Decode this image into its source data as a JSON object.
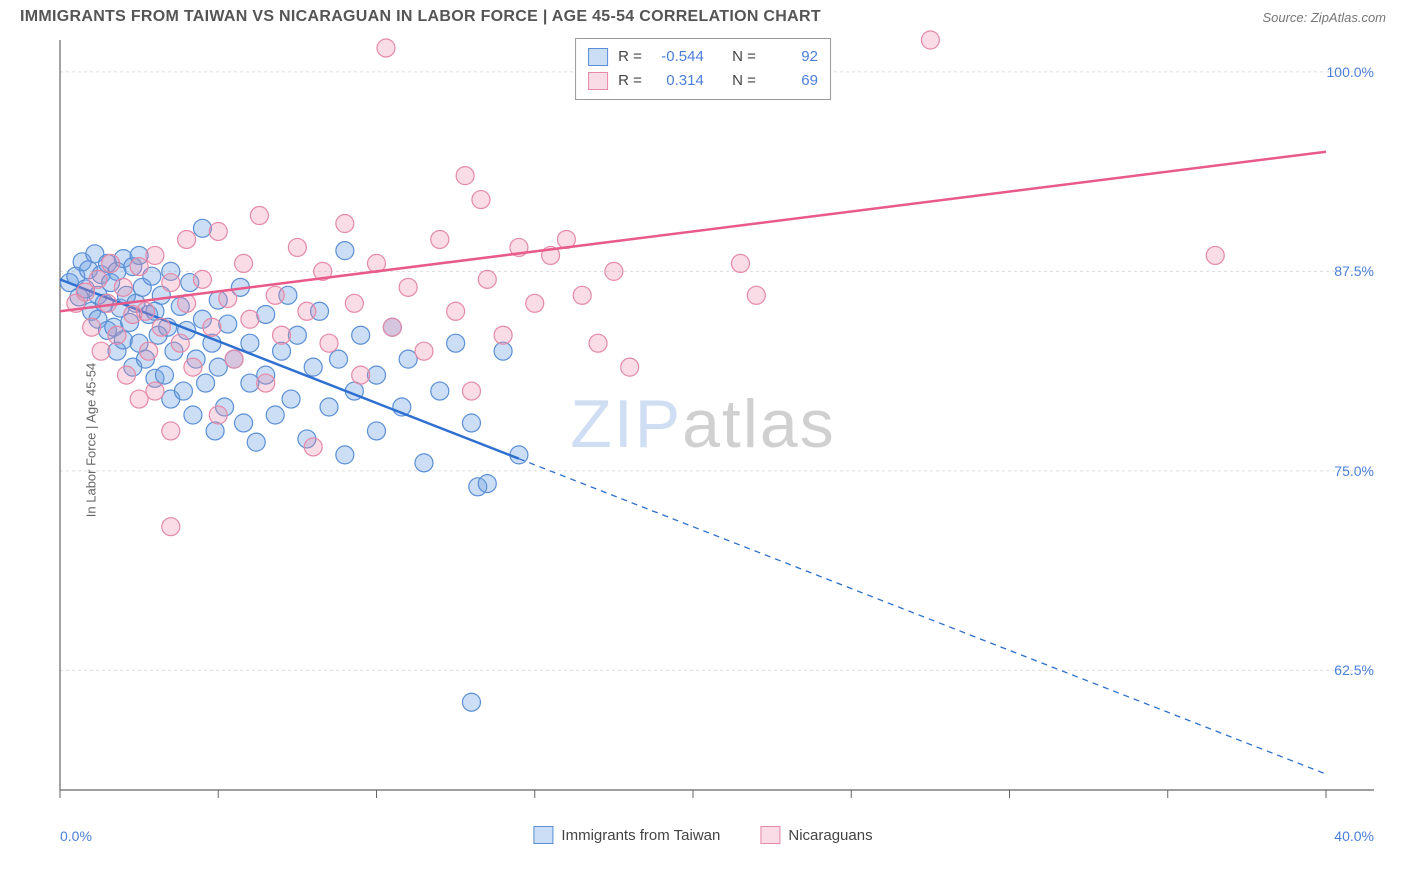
{
  "header": {
    "title": "IMMIGRANTS FROM TAIWAN VS NICARAGUAN IN LABOR FORCE | AGE 45-54 CORRELATION CHART",
    "source": "Source: ZipAtlas.com"
  },
  "watermark": {
    "zip": "ZIP",
    "atlas": "atlas"
  },
  "chart": {
    "type": "scatter",
    "background_color": "#ffffff",
    "axis_color": "#666666",
    "grid_color": "#dddddd",
    "tick_label_color": "#4a7fd8",
    "marker_radius": 9,
    "marker_stroke_width": 1.2,
    "line_width": 2.5,
    "x": {
      "min": 0,
      "max": 40,
      "label_min": "0.0%",
      "label_max": "40.0%",
      "ticks": [
        0,
        5,
        10,
        15,
        20,
        25,
        30,
        35,
        40
      ]
    },
    "y": {
      "min": 55,
      "max": 102,
      "label": "In Labor Force | Age 45-54",
      "grid_values": [
        62.5,
        75.0,
        87.5,
        100.0
      ],
      "grid_labels": [
        "62.5%",
        "75.0%",
        "87.5%",
        "100.0%"
      ]
    },
    "series": [
      {
        "id": "taiwan",
        "name": "Immigrants from Taiwan",
        "fill_color": "rgba(109,160,226,0.35)",
        "stroke_color": "#5a8fd6",
        "line_color": "#2e6fd0",
        "R": "-0.544",
        "N": "92",
        "trend": {
          "y_at_xmin": 87.0,
          "y_at_xmax": 56.0,
          "solid_until_x": 14.5
        },
        "points": [
          [
            0.3,
            86.8
          ],
          [
            0.5,
            87.2
          ],
          [
            0.6,
            85.9
          ],
          [
            0.7,
            88.1
          ],
          [
            0.8,
            86.4
          ],
          [
            0.9,
            87.6
          ],
          [
            1.0,
            85.0
          ],
          [
            1.1,
            88.6
          ],
          [
            1.2,
            86.0
          ],
          [
            1.2,
            84.5
          ],
          [
            1.3,
            87.3
          ],
          [
            1.4,
            85.5
          ],
          [
            1.5,
            88.0
          ],
          [
            1.5,
            83.8
          ],
          [
            1.6,
            86.8
          ],
          [
            1.7,
            84.0
          ],
          [
            1.8,
            87.5
          ],
          [
            1.8,
            82.5
          ],
          [
            1.9,
            85.2
          ],
          [
            2.0,
            88.3
          ],
          [
            2.0,
            83.2
          ],
          [
            2.1,
            86.0
          ],
          [
            2.2,
            84.3
          ],
          [
            2.3,
            87.8
          ],
          [
            2.3,
            81.5
          ],
          [
            2.4,
            85.5
          ],
          [
            2.5,
            83.0
          ],
          [
            2.5,
            88.5
          ],
          [
            2.6,
            86.5
          ],
          [
            2.7,
            82.0
          ],
          [
            2.8,
            84.8
          ],
          [
            2.9,
            87.2
          ],
          [
            3.0,
            80.8
          ],
          [
            3.0,
            85.0
          ],
          [
            3.1,
            83.5
          ],
          [
            3.2,
            86.0
          ],
          [
            3.3,
            81.0
          ],
          [
            3.4,
            84.0
          ],
          [
            3.5,
            87.5
          ],
          [
            3.5,
            79.5
          ],
          [
            3.6,
            82.5
          ],
          [
            3.8,
            85.3
          ],
          [
            3.9,
            80.0
          ],
          [
            4.0,
            83.8
          ],
          [
            4.1,
            86.8
          ],
          [
            4.2,
            78.5
          ],
          [
            4.3,
            82.0
          ],
          [
            4.5,
            84.5
          ],
          [
            4.5,
            90.2
          ],
          [
            4.6,
            80.5
          ],
          [
            4.8,
            83.0
          ],
          [
            4.9,
            77.5
          ],
          [
            5.0,
            85.7
          ],
          [
            5.0,
            81.5
          ],
          [
            5.2,
            79.0
          ],
          [
            5.3,
            84.2
          ],
          [
            5.5,
            82.0
          ],
          [
            5.7,
            86.5
          ],
          [
            5.8,
            78.0
          ],
          [
            6.0,
            83.0
          ],
          [
            6.0,
            80.5
          ],
          [
            6.2,
            76.8
          ],
          [
            6.5,
            84.8
          ],
          [
            6.5,
            81.0
          ],
          [
            6.8,
            78.5
          ],
          [
            7.0,
            82.5
          ],
          [
            7.2,
            86.0
          ],
          [
            7.3,
            79.5
          ],
          [
            7.5,
            83.5
          ],
          [
            7.8,
            77.0
          ],
          [
            8.0,
            81.5
          ],
          [
            8.2,
            85.0
          ],
          [
            8.5,
            79.0
          ],
          [
            8.8,
            82.0
          ],
          [
            9.0,
            88.8
          ],
          [
            9.0,
            76.0
          ],
          [
            9.3,
            80.0
          ],
          [
            9.5,
            83.5
          ],
          [
            10.0,
            81.0
          ],
          [
            10.0,
            77.5
          ],
          [
            10.5,
            84.0
          ],
          [
            10.8,
            79.0
          ],
          [
            11.0,
            82.0
          ],
          [
            11.5,
            75.5
          ],
          [
            12.0,
            80.0
          ],
          [
            12.5,
            83.0
          ],
          [
            13.0,
            78.0
          ],
          [
            13.2,
            74.0
          ],
          [
            13.5,
            74.2
          ],
          [
            14.0,
            82.5
          ],
          [
            14.5,
            76.0
          ],
          [
            13.0,
            60.5
          ]
        ]
      },
      {
        "id": "nicaragua",
        "name": "Nicaraguans",
        "fill_color": "rgba(236,140,170,0.30)",
        "stroke_color": "#e589a8",
        "line_color": "#e85a8a",
        "R": "0.314",
        "N": "69",
        "trend": {
          "y_at_xmin": 85.0,
          "y_at_xmax": 95.0,
          "solid_until_x": 40
        },
        "points": [
          [
            0.5,
            85.5
          ],
          [
            0.8,
            86.2
          ],
          [
            1.0,
            84.0
          ],
          [
            1.2,
            87.0
          ],
          [
            1.3,
            82.5
          ],
          [
            1.5,
            85.5
          ],
          [
            1.6,
            88.0
          ],
          [
            1.8,
            83.5
          ],
          [
            2.0,
            86.5
          ],
          [
            2.1,
            81.0
          ],
          [
            2.3,
            84.8
          ],
          [
            2.5,
            87.8
          ],
          [
            2.5,
            79.5
          ],
          [
            2.7,
            85.0
          ],
          [
            2.8,
            82.5
          ],
          [
            3.0,
            88.5
          ],
          [
            3.0,
            80.0
          ],
          [
            3.2,
            84.0
          ],
          [
            3.5,
            86.8
          ],
          [
            3.5,
            77.5
          ],
          [
            3.8,
            83.0
          ],
          [
            4.0,
            85.5
          ],
          [
            4.0,
            89.5
          ],
          [
            4.2,
            81.5
          ],
          [
            4.5,
            87.0
          ],
          [
            4.8,
            84.0
          ],
          [
            5.0,
            90.0
          ],
          [
            5.0,
            78.5
          ],
          [
            5.3,
            85.8
          ],
          [
            5.5,
            82.0
          ],
          [
            5.8,
            88.0
          ],
          [
            6.0,
            84.5
          ],
          [
            6.3,
            91.0
          ],
          [
            6.5,
            80.5
          ],
          [
            6.8,
            86.0
          ],
          [
            7.0,
            83.5
          ],
          [
            7.5,
            89.0
          ],
          [
            7.8,
            85.0
          ],
          [
            8.0,
            76.5
          ],
          [
            8.3,
            87.5
          ],
          [
            8.5,
            83.0
          ],
          [
            9.0,
            90.5
          ],
          [
            9.3,
            85.5
          ],
          [
            9.5,
            81.0
          ],
          [
            10.0,
            88.0
          ],
          [
            10.3,
            101.5
          ],
          [
            10.5,
            84.0
          ],
          [
            11.0,
            86.5
          ],
          [
            11.5,
            82.5
          ],
          [
            12.0,
            89.5
          ],
          [
            12.5,
            85.0
          ],
          [
            12.8,
            93.5
          ],
          [
            13.0,
            80.0
          ],
          [
            13.3,
            92.0
          ],
          [
            13.5,
            87.0
          ],
          [
            14.0,
            83.5
          ],
          [
            14.5,
            89.0
          ],
          [
            15.0,
            85.5
          ],
          [
            15.5,
            88.5
          ],
          [
            16.0,
            89.5
          ],
          [
            16.5,
            86.0
          ],
          [
            17.0,
            83.0
          ],
          [
            17.5,
            87.5
          ],
          [
            18.0,
            81.5
          ],
          [
            21.5,
            88.0
          ],
          [
            22.0,
            86.0
          ],
          [
            27.5,
            102.0
          ],
          [
            36.5,
            88.5
          ],
          [
            3.5,
            71.5
          ]
        ]
      }
    ]
  },
  "legend": {
    "r_label": "R =",
    "n_label": "N ="
  }
}
